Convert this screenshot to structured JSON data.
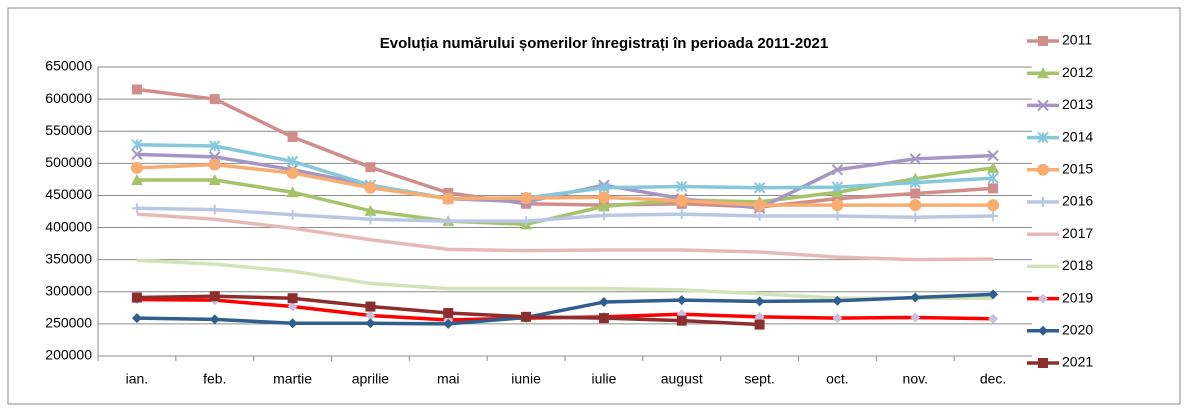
{
  "chart_data": {
    "type": "line",
    "title": "Evoluția numărului  șomerilor înregistrați în perioada 2011-2021",
    "categories": [
      "ian.",
      "feb.",
      "martie",
      "aprilie",
      "mai",
      "iunie",
      "iulie",
      "august",
      "sept.",
      "oct.",
      "nov.",
      "dec."
    ],
    "ylim": [
      200000,
      650000
    ],
    "yticks": [
      200000,
      250000,
      300000,
      350000,
      400000,
      450000,
      500000,
      550000,
      600000,
      650000
    ],
    "grid": true,
    "legend": "right",
    "series": [
      {
        "name": "2011",
        "color": "#d08d8a",
        "marker": "square",
        "values": [
          615000,
          600000,
          541000,
          494000,
          454000,
          437000,
          435000,
          437000,
          432000,
          445000,
          453000,
          461000
        ]
      },
      {
        "name": "2012",
        "color": "#a5c46a",
        "marker": "triangle",
        "values": [
          474000,
          474000,
          455000,
          426000,
          410000,
          405000,
          433000,
          443000,
          440000,
          455000,
          476000,
          493000
        ]
      },
      {
        "name": "2013",
        "color": "#a596c6",
        "marker": "x",
        "values": [
          514000,
          510000,
          490000,
          466000,
          445000,
          440000,
          466000,
          445000,
          430000,
          490000,
          507000,
          512000
        ]
      },
      {
        "name": "2014",
        "color": "#86c8da",
        "marker": "star",
        "values": [
          529000,
          527000,
          503000,
          466000,
          445000,
          446000,
          462000,
          464000,
          462000,
          463000,
          470000,
          477000
        ]
      },
      {
        "name": "2015",
        "color": "#f9ac70",
        "marker": "circle",
        "values": [
          493000,
          498000,
          485000,
          462000,
          445000,
          446000,
          447000,
          442000,
          435000,
          435000,
          435000,
          435000
        ]
      },
      {
        "name": "2016",
        "color": "#b8c8e4",
        "marker": "plus",
        "values": [
          430000,
          428000,
          420000,
          413000,
          410000,
          410000,
          419000,
          421000,
          418000,
          418000,
          416000,
          418000
        ]
      },
      {
        "name": "2017",
        "color": "#e6b9b7",
        "marker": "none",
        "values": [
          421000,
          413000,
          399000,
          381000,
          366000,
          364000,
          365000,
          365000,
          362000,
          354000,
          350000,
          351000
        ]
      },
      {
        "name": "2018",
        "color": "#d4e2b8",
        "marker": "none",
        "values": [
          349000,
          343000,
          332000,
          313000,
          305000,
          305000,
          305000,
          303000,
          297000,
          290000,
          290000,
          290000
        ]
      },
      {
        "name": "2019",
        "color": "#ff0000",
        "marker": "diamond",
        "marker_color": "#c9c0dd",
        "values": [
          288000,
          287000,
          277000,
          263000,
          256000,
          259000,
          261000,
          265000,
          261000,
          259000,
          260000,
          258000
        ]
      },
      {
        "name": "2020",
        "color": "#2e5f8f",
        "marker": "diamond",
        "values": [
          259000,
          257000,
          251000,
          251000,
          250000,
          260000,
          284000,
          287000,
          285000,
          286000,
          291000,
          296000
        ]
      },
      {
        "name": "2021",
        "color": "#8c2e2e",
        "marker": "square",
        "values": [
          291000,
          293000,
          290000,
          277000,
          267000,
          261000,
          259000,
          255000,
          249000,
          null,
          null,
          null
        ]
      }
    ]
  }
}
